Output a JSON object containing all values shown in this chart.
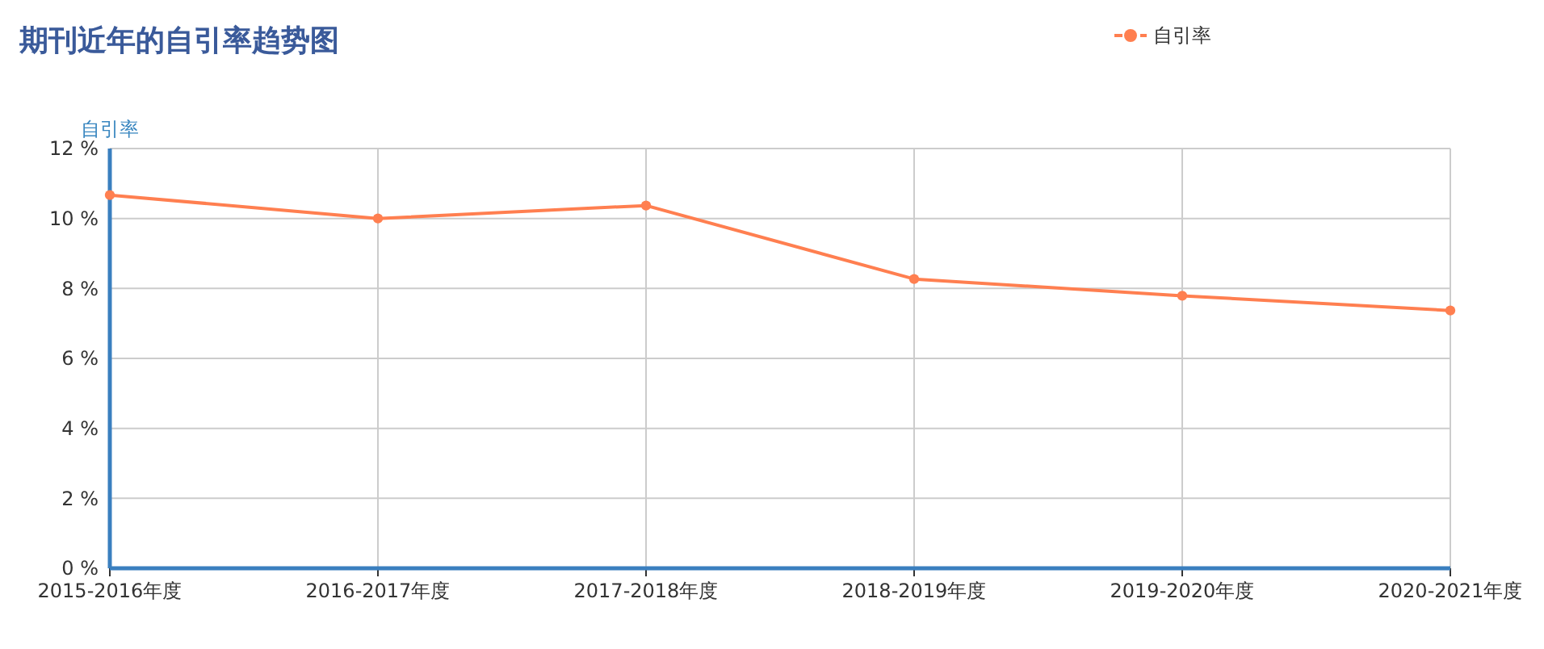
{
  "chart_data": {
    "type": "line",
    "title": "期刊近年的自引率趋势图",
    "ylabel": "自引率",
    "categories": [
      "2015-2016年度",
      "2016-2017年度",
      "2017-2018年度",
      "2018-2019年度",
      "2019-2020年度",
      "2020-2021年度"
    ],
    "series": [
      {
        "name": "自引率",
        "color": "#ff7f50",
        "values": [
          10.67,
          10.0,
          10.37,
          8.27,
          7.79,
          7.37
        ]
      }
    ],
    "ylim": [
      0,
      12
    ],
    "yticks": [
      {
        "value": 0,
        "label": "0 %"
      },
      {
        "value": 2,
        "label": "2 %"
      },
      {
        "value": 4,
        "label": "4 %"
      },
      {
        "value": 6,
        "label": "6 %"
      },
      {
        "value": 8,
        "label": "8 %"
      },
      {
        "value": 10,
        "label": "10 %"
      },
      {
        "value": 12,
        "label": "12 %"
      }
    ],
    "grid": true,
    "legend": "top right",
    "marker": "circle",
    "line_style": "solid"
  }
}
